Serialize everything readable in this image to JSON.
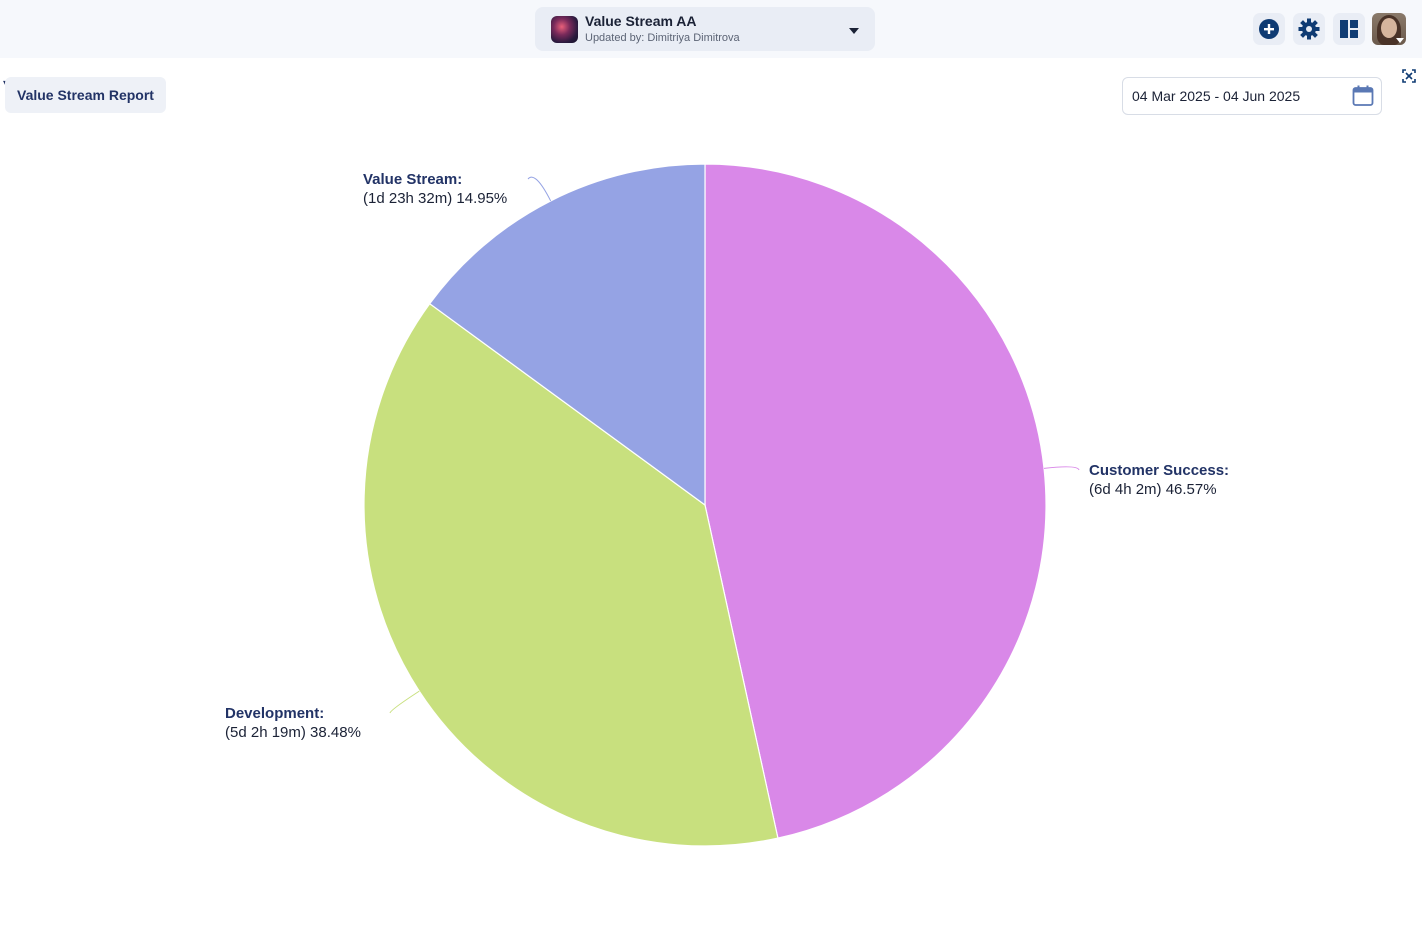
{
  "header": {
    "stream_title": "Value Stream AA",
    "updated_by": "Updated by: Dimitriya Dimitrova",
    "icons": [
      "plus-circle-icon",
      "gear-icon",
      "dashboard-icon"
    ]
  },
  "toolbar": {
    "report_tab": "Value Stream Report",
    "date_range": "04 Mar 2025 - 04 Jun 2025"
  },
  "colors": {
    "customer_success": "#d988e8",
    "development": "#c8e07e",
    "value_stream": "#95a3e4",
    "label": "#223366"
  },
  "chart_data": {
    "type": "pie",
    "title": "",
    "slices": [
      {
        "name": "Customer Success:",
        "value": 46.57,
        "detail": "(6d 4h 2m) 46.57%",
        "color": "#d988e8"
      },
      {
        "name": "Development:",
        "value": 38.48,
        "detail": "(5d 2h 19m) 38.48%",
        "color": "#c8e07e"
      },
      {
        "name": "Value Stream:",
        "value": 14.95,
        "detail": "(1d 23h 32m) 14.95%",
        "color": "#95a3e4"
      }
    ]
  }
}
